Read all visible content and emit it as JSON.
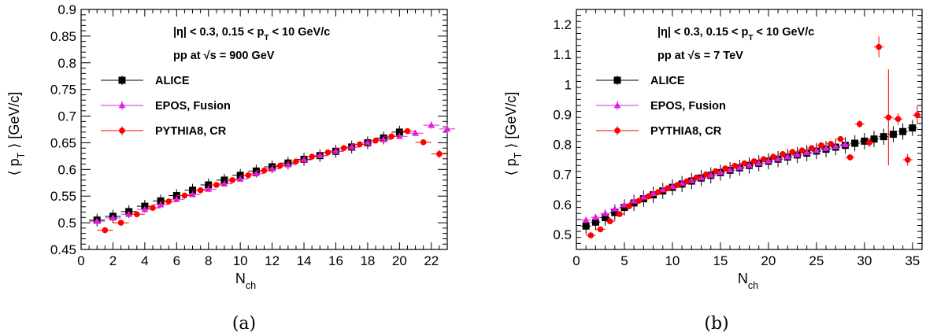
{
  "panel_labels": [
    "(a)",
    "(b)"
  ],
  "chart_data": [
    {
      "type": "scatter",
      "info_line1": "|η| < 0.3, 0.15 < p_T < 10 GeV/c",
      "info_line2": "pp at √s = 900 GeV",
      "xlabel": "N_ch",
      "ylabel": "⟨ p_T ⟩ [GeV/c]",
      "xlim": [
        0,
        23
      ],
      "ylim": [
        0.45,
        0.9
      ],
      "xticks": [
        0,
        2,
        4,
        6,
        8,
        10,
        12,
        14,
        16,
        18,
        20,
        22
      ],
      "yticks": [
        0.45,
        0.5,
        0.55,
        0.6,
        0.65,
        0.7,
        0.75,
        0.8,
        0.85,
        0.9
      ],
      "xtick_labels": [
        "0",
        "2",
        "4",
        "6",
        "8",
        "10",
        "12",
        "14",
        "16",
        "18",
        "20",
        "22"
      ],
      "ytick_labels": [
        "0.45",
        "0.5",
        "0.55",
        "0.6",
        "0.65",
        "0.7",
        "0.75",
        "0.8",
        "0.85",
        "0.9"
      ],
      "legend_position": "upper-left",
      "series": [
        {
          "name": "ALICE",
          "marker": "square",
          "color": "#000000",
          "x": [
            1,
            2,
            3,
            4,
            5,
            6,
            7,
            8,
            9,
            10,
            11,
            12,
            13,
            14,
            15,
            16,
            17,
            18,
            19,
            20
          ],
          "y": [
            0.505,
            0.512,
            0.521,
            0.531,
            0.541,
            0.551,
            0.561,
            0.571,
            0.58,
            0.589,
            0.597,
            0.605,
            0.612,
            0.619,
            0.626,
            0.634,
            0.642,
            0.65,
            0.659,
            0.67
          ],
          "yerr": [
            0.012,
            0.012,
            0.012,
            0.012,
            0.012,
            0.012,
            0.012,
            0.012,
            0.012,
            0.012,
            0.012,
            0.012,
            0.012,
            0.012,
            0.012,
            0.012,
            0.012,
            0.012,
            0.012,
            0.012
          ]
        },
        {
          "name": "EPOS, Fusion",
          "marker": "triangle",
          "color": "#e020e0",
          "x": [
            1,
            2,
            3,
            4,
            5,
            6,
            7,
            8,
            9,
            10,
            11,
            12,
            13,
            14,
            15,
            16,
            17,
            18,
            19,
            20,
            21,
            22,
            23
          ],
          "y": [
            0.503,
            0.509,
            0.516,
            0.525,
            0.534,
            0.544,
            0.553,
            0.563,
            0.573,
            0.582,
            0.592,
            0.601,
            0.609,
            0.618,
            0.626,
            0.634,
            0.642,
            0.65,
            0.656,
            0.662,
            0.668,
            0.683,
            0.676
          ],
          "yerr": [
            0.002,
            0.002,
            0.002,
            0.002,
            0.002,
            0.002,
            0.002,
            0.002,
            0.002,
            0.002,
            0.002,
            0.002,
            0.002,
            0.002,
            0.002,
            0.002,
            0.002,
            0.002,
            0.003,
            0.004,
            0.005,
            0.007,
            0.008
          ]
        },
        {
          "name": "PYTHIA8, CR",
          "marker": "circle",
          "color": "#ff0000",
          "x": [
            1.5,
            2.5,
            3.5,
            4.5,
            5.5,
            6.5,
            7.5,
            8.5,
            9.5,
            10.5,
            11.5,
            12.5,
            13.5,
            14.5,
            15.5,
            16.5,
            17.5,
            18.5,
            19.5,
            20.5,
            21.5,
            22.5
          ],
          "y": [
            0.486,
            0.5,
            0.516,
            0.528,
            0.54,
            0.551,
            0.561,
            0.571,
            0.58,
            0.589,
            0.598,
            0.607,
            0.615,
            0.624,
            0.632,
            0.64,
            0.647,
            0.654,
            0.662,
            0.672,
            0.651,
            0.629
          ],
          "yerr": [
            0.002,
            0.002,
            0.002,
            0.002,
            0.002,
            0.002,
            0.002,
            0.002,
            0.002,
            0.002,
            0.002,
            0.002,
            0.002,
            0.002,
            0.002,
            0.002,
            0.002,
            0.003,
            0.003,
            0.004,
            0.005,
            0.008
          ]
        }
      ]
    },
    {
      "type": "scatter",
      "info_line1": "|η| < 0.3, 0.15 < p_T < 10 GeV/c",
      "info_line2": "pp at √s = 7 TeV",
      "xlabel": "N_ch",
      "ylabel": "⟨ p_T ⟩ [GeV/c]",
      "xlim": [
        0,
        36
      ],
      "ylim": [
        0.45,
        1.25
      ],
      "xticks": [
        0,
        5,
        10,
        15,
        20,
        25,
        30,
        35
      ],
      "yticks": [
        0.5,
        0.6,
        0.7,
        0.8,
        0.9,
        1.0,
        1.1,
        1.2
      ],
      "xtick_labels": [
        "0",
        "5",
        "10",
        "15",
        "20",
        "25",
        "30",
        "35"
      ],
      "ytick_labels": [
        "0.5",
        "0.6",
        "0.7",
        "0.8",
        "0.9",
        "1",
        "1.1",
        "1.2"
      ],
      "legend_position": "upper-left",
      "series": [
        {
          "name": "ALICE",
          "marker": "square",
          "color": "#000000",
          "x": [
            1,
            2,
            3,
            4,
            5,
            6,
            7,
            8,
            9,
            10,
            11,
            12,
            13,
            14,
            15,
            16,
            17,
            18,
            19,
            20,
            21,
            22,
            23,
            24,
            25,
            26,
            27,
            28,
            29,
            30,
            31,
            32,
            33,
            34,
            35
          ],
          "y": [
            0.528,
            0.541,
            0.556,
            0.573,
            0.59,
            0.605,
            0.619,
            0.632,
            0.645,
            0.657,
            0.668,
            0.678,
            0.688,
            0.697,
            0.706,
            0.714,
            0.722,
            0.73,
            0.737,
            0.744,
            0.751,
            0.758,
            0.765,
            0.771,
            0.778,
            0.784,
            0.791,
            0.797,
            0.804,
            0.811,
            0.818,
            0.826,
            0.834,
            0.843,
            0.855
          ],
          "yerr": [
            0.027,
            0.027,
            0.027,
            0.027,
            0.027,
            0.027,
            0.027,
            0.027,
            0.027,
            0.027,
            0.027,
            0.027,
            0.027,
            0.027,
            0.027,
            0.027,
            0.027,
            0.027,
            0.027,
            0.027,
            0.027,
            0.027,
            0.027,
            0.027,
            0.027,
            0.027,
            0.027,
            0.027,
            0.027,
            0.027,
            0.027,
            0.027,
            0.027,
            0.027,
            0.027
          ]
        },
        {
          "name": "EPOS, Fusion",
          "marker": "triangle",
          "color": "#e020e0",
          "x": [
            1,
            2,
            3,
            4,
            5,
            6,
            7,
            8,
            9,
            10,
            11,
            12,
            13,
            14,
            15,
            16,
            17,
            18,
            19,
            20,
            21,
            22,
            23,
            24,
            25,
            26,
            27,
            28
          ],
          "y": [
            0.548,
            0.557,
            0.57,
            0.585,
            0.599,
            0.612,
            0.625,
            0.637,
            0.649,
            0.66,
            0.67,
            0.68,
            0.689,
            0.698,
            0.707,
            0.715,
            0.723,
            0.731,
            0.738,
            0.745,
            0.752,
            0.759,
            0.766,
            0.773,
            0.78,
            0.787,
            0.793,
            0.8
          ],
          "yerr": [
            0.004,
            0.003,
            0.003,
            0.003,
            0.003,
            0.003,
            0.003,
            0.003,
            0.003,
            0.003,
            0.003,
            0.003,
            0.003,
            0.003,
            0.003,
            0.003,
            0.003,
            0.003,
            0.003,
            0.003,
            0.003,
            0.003,
            0.004,
            0.004,
            0.004,
            0.005,
            0.005,
            0.006
          ]
        },
        {
          "name": "PYTHIA8, CR",
          "marker": "circle",
          "color": "#ff0000",
          "x": [
            1.5,
            2.5,
            3.5,
            4.5,
            5.5,
            6.5,
            7.5,
            8.5,
            9.5,
            10.5,
            11.5,
            12.5,
            13.5,
            14.5,
            15.5,
            16.5,
            17.5,
            18.5,
            19.5,
            20.5,
            21.5,
            22.5,
            23.5,
            24.5,
            25.5,
            26.5,
            27.5,
            28.5,
            29.5,
            30.5,
            31.5,
            32.5,
            33.5,
            34.5,
            35.5
          ],
          "y": [
            0.497,
            0.517,
            0.544,
            0.568,
            0.594,
            0.612,
            0.627,
            0.641,
            0.654,
            0.665,
            0.677,
            0.69,
            0.7,
            0.711,
            0.72,
            0.729,
            0.737,
            0.744,
            0.751,
            0.759,
            0.768,
            0.775,
            0.78,
            0.788,
            0.797,
            0.802,
            0.818,
            0.757,
            0.868,
            0.806,
            1.125,
            0.89,
            0.885,
            0.749,
            0.898
          ],
          "yerr": [
            0.003,
            0.003,
            0.003,
            0.003,
            0.003,
            0.003,
            0.003,
            0.003,
            0.003,
            0.003,
            0.003,
            0.003,
            0.003,
            0.003,
            0.003,
            0.003,
            0.004,
            0.004,
            0.004,
            0.004,
            0.005,
            0.005,
            0.005,
            0.006,
            0.006,
            0.007,
            0.008,
            0.01,
            0.012,
            0.014,
            0.035,
            0.16,
            0.02,
            0.02,
            0.03
          ]
        }
      ]
    }
  ]
}
